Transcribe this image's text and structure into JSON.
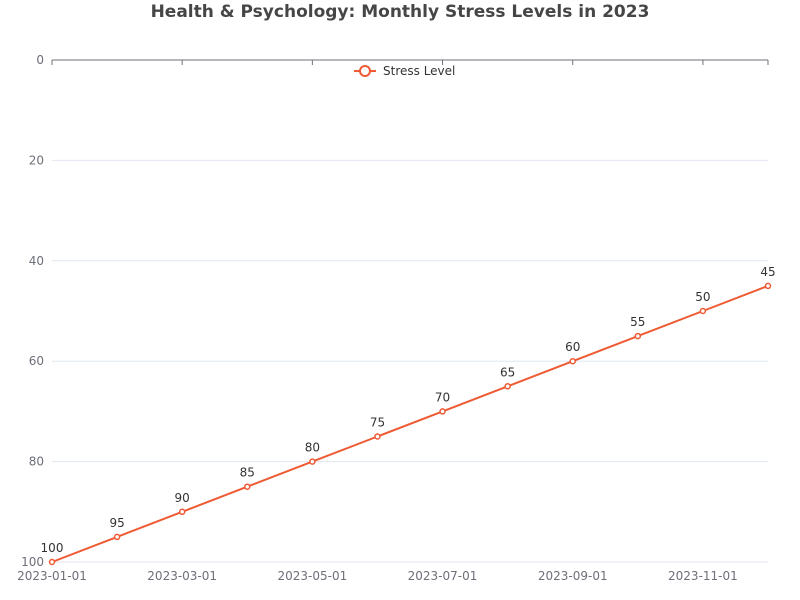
{
  "chart_data": {
    "type": "line",
    "title": "Health & Psychology: Monthly Stress Levels in 2023",
    "xlabel": "",
    "ylabel": "",
    "x": [
      "2023-01-01",
      "2023-02-01",
      "2023-03-01",
      "2023-04-01",
      "2023-05-01",
      "2023-06-01",
      "2023-07-01",
      "2023-08-01",
      "2023-09-01",
      "2023-10-01",
      "2023-11-01",
      "2023-12-01"
    ],
    "x_tick_labels": [
      "2023-01-01",
      "2023-03-01",
      "2023-05-01",
      "2023-07-01",
      "2023-09-01",
      "2023-11-01"
    ],
    "y_tick_labels": [
      "0",
      "20",
      "40",
      "60",
      "80",
      "100"
    ],
    "y_ticks": [
      0,
      20,
      40,
      60,
      80,
      100
    ],
    "ylim": [
      0,
      100
    ],
    "y_inverted": true,
    "grid": true,
    "legend": "top-center",
    "series": [
      {
        "name": "Stress Level",
        "color": "#ee5a33",
        "values": [
          100,
          95,
          90,
          85,
          80,
          75,
          70,
          65,
          60,
          55,
          50,
          45
        ],
        "data_labels": [
          "100",
          "95",
          "90",
          "85",
          "80",
          "75",
          "70",
          "65",
          "60",
          "55",
          "50",
          "45"
        ]
      }
    ]
  }
}
